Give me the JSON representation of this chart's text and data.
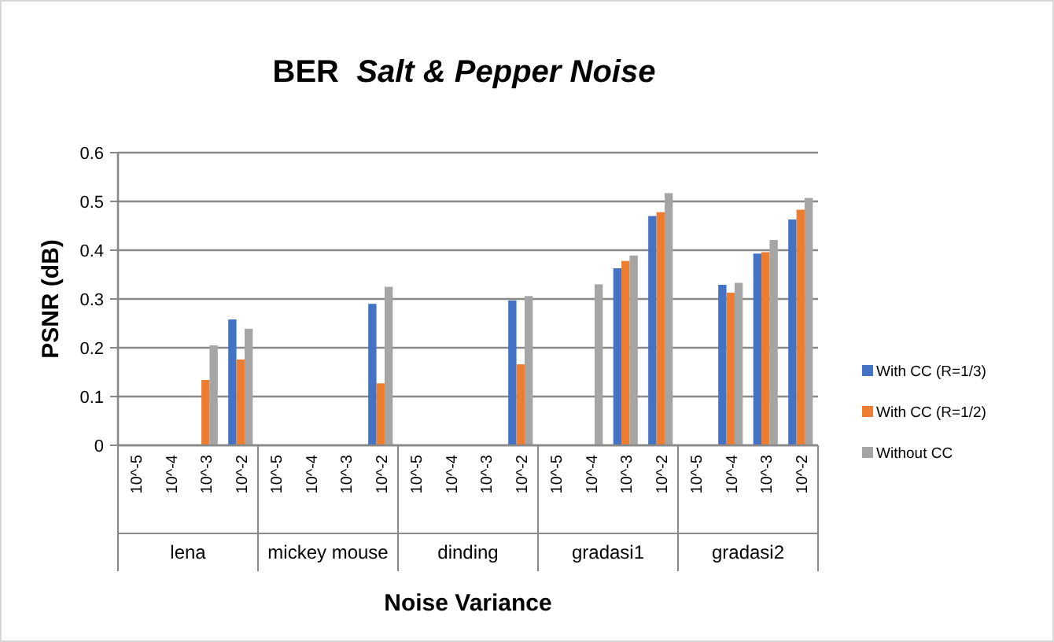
{
  "chart_data": {
    "type": "bar",
    "title": "BER  Salt & Pepper Noise",
    "xlabel": "Noise Variance",
    "ylabel": "PSNR (dB)",
    "categories": [
      "10^-5",
      "10^-4",
      "10^-3",
      "10^-2",
      "10^-5",
      "10^-4",
      "10^-3",
      "10^-2",
      "10^-5",
      "10^-4",
      "10^-3",
      "10^-2",
      "10^-5",
      "10^-4",
      "10^-3",
      "10^-2",
      "10^-5",
      "10^-4",
      "10^-3",
      "10^-2"
    ],
    "annotations": [
      "lena",
      "mickey mouse",
      "dinding",
      "gradasi1",
      "gradasi2"
    ],
    "series": [
      {
        "name": "With CC (R=1/3)",
        "color": "#4472c4",
        "values": [
          0,
          0,
          0,
          0.258,
          0,
          0,
          0,
          0.29,
          0,
          0,
          0,
          0.297,
          0,
          0,
          0.363,
          0.47,
          0,
          0.329,
          0.393,
          0.463
        ]
      },
      {
        "name": "With CC (R=1/2)",
        "color": "#ed7d31",
        "values": [
          0,
          0,
          0.134,
          0.176,
          0,
          0,
          0,
          0.127,
          0,
          0,
          0,
          0.166,
          0,
          0,
          0.378,
          0.478,
          0,
          0.313,
          0.396,
          0.483
        ]
      },
      {
        "name": "Without CC",
        "color": "#a5a5a5",
        "values": [
          0,
          0,
          0.205,
          0.239,
          0,
          0,
          0,
          0.325,
          0,
          0,
          0,
          0.306,
          0,
          0.33,
          0.389,
          0.517,
          0,
          0.333,
          0.421,
          0.507
        ]
      }
    ],
    "ylim": [
      0,
      0.6
    ],
    "yticks": [
      0,
      0.1,
      0.2,
      0.3,
      0.4,
      0.5,
      0.6
    ],
    "grid": "y",
    "legend": "right"
  }
}
